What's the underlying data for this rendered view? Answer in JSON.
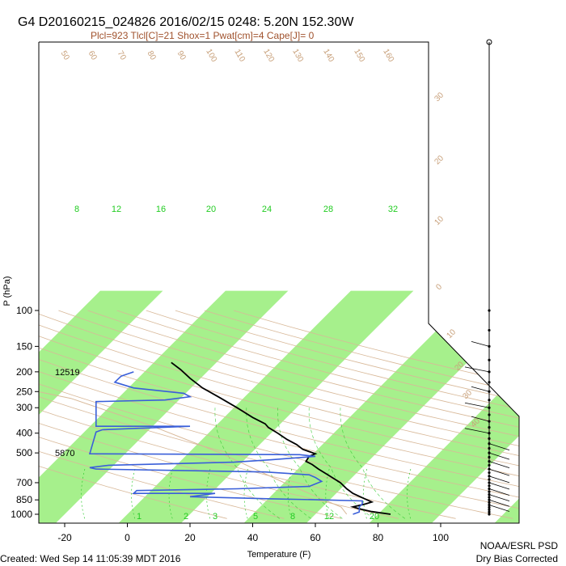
{
  "header": {
    "title": "G4 D20160215_024826 2016/02/15 0248:  5.20N 152.30W",
    "subtitle": "Plcl=923 Tlcl[C]=21 Shox=1 Pwat[cm]=4 Cape[J]= 0"
  },
  "footer": {
    "created": "Created: Wed Sep 14 11:05:39 MDT 2016",
    "org": "NOAA/ESRL PSD",
    "note": "Dry Bias Corrected"
  },
  "colors": {
    "band": "#a6f08c",
    "temperature": "#000000",
    "dewpoint": "#3a5fd9",
    "dry_adiabat": "#d8b898",
    "moist_adiabat": "#33cc33",
    "mixing_ratio": "#33cc33",
    "parcel": "#d8b898"
  },
  "chart_data": {
    "type": "line",
    "chart_kind": "skew-T log-P sounding",
    "title": "G4 D20160215_024826 2016/02/15 0248:  5.20N 152.30W",
    "xlabel": "Temperature (F)",
    "ylabel": "P (hPa)",
    "xlim": [
      -30,
      110
    ],
    "ylim": [
      1025,
      100
    ],
    "y_scale": "log",
    "x_ticks": [
      "-20",
      "0",
      "20",
      "40",
      "60",
      "80",
      "100"
    ],
    "y_ticks": [
      "100",
      "150",
      "200",
      "250",
      "300",
      "400",
      "500",
      "700",
      "850",
      "1000"
    ],
    "height_labels": [
      {
        "p": 200,
        "text": "12519"
      },
      {
        "p": 500,
        "text": "5870"
      }
    ],
    "mixing_ratio_labels": [
      "8",
      "12",
      "16",
      "20",
      "24",
      "28",
      "32"
    ],
    "mixing_ratio_labels_bottom": [
      "1",
      "2",
      "3",
      "5",
      "8",
      "12",
      "20"
    ],
    "dry_adiabat_labels": [
      "50",
      "60",
      "70",
      "80",
      "90",
      "100",
      "110",
      "120",
      "130",
      "140",
      "150",
      "160"
    ],
    "skewed_temperature_labels": [
      "30",
      "20",
      "10",
      "0",
      "10",
      "20",
      "30",
      "40"
    ],
    "series": [
      {
        "name": "",
        "role": "temperature",
        "points": [
          [
            84,
            1000
          ],
          [
            78,
            970
          ],
          [
            74,
            940
          ],
          [
            72,
            920
          ],
          [
            76,
            890
          ],
          [
            78,
            870
          ],
          [
            75,
            830
          ],
          [
            72,
            790
          ],
          [
            70,
            750
          ],
          [
            68,
            700
          ],
          [
            64,
            640
          ],
          [
            61,
            600
          ],
          [
            59,
            570
          ],
          [
            57,
            550
          ],
          [
            58,
            520
          ],
          [
            60,
            505
          ],
          [
            56,
            480
          ],
          [
            54,
            455
          ],
          [
            51,
            430
          ],
          [
            48,
            400
          ],
          [
            45,
            375
          ],
          [
            44,
            360
          ],
          [
            40,
            335
          ],
          [
            35,
            300
          ],
          [
            29,
            265
          ],
          [
            24,
            240
          ],
          [
            20,
            215
          ],
          [
            17,
            195
          ],
          [
            14,
            180
          ]
        ]
      },
      {
        "name": "",
        "role": "dewpoint",
        "points": [
          [
            72,
            1000
          ],
          [
            74,
            975
          ],
          [
            74,
            950
          ],
          [
            74,
            920
          ],
          [
            75,
            890
          ],
          [
            75,
            860
          ],
          [
            62,
            850
          ],
          [
            46,
            840
          ],
          [
            20,
            820
          ],
          [
            28,
            790
          ],
          [
            2,
            790
          ],
          [
            3,
            765
          ],
          [
            35,
            750
          ],
          [
            58,
            730
          ],
          [
            60,
            710
          ],
          [
            62,
            690
          ],
          [
            60,
            660
          ],
          [
            58,
            640
          ],
          [
            44,
            620
          ],
          [
            -10,
            600
          ],
          [
            -12,
            590
          ],
          [
            -6,
            575
          ],
          [
            34,
            555
          ],
          [
            46,
            540
          ],
          [
            60,
            520
          ],
          [
            55,
            510
          ],
          [
            -12,
            505
          ],
          [
            -10,
            395
          ],
          [
            -8,
            385
          ],
          [
            20,
            370
          ],
          [
            -10,
            370
          ],
          [
            -10,
            280
          ],
          [
            12,
            275
          ],
          [
            20,
            265
          ],
          [
            18,
            255
          ],
          [
            2,
            240
          ],
          [
            -4,
            225
          ],
          [
            -2,
            210
          ],
          [
            2,
            200
          ]
        ]
      }
    ],
    "wind_profile": {
      "present": true,
      "levels": [
        "1000",
        "850",
        "700",
        "500",
        "400",
        "300",
        "200",
        "150",
        "100"
      ]
    }
  }
}
